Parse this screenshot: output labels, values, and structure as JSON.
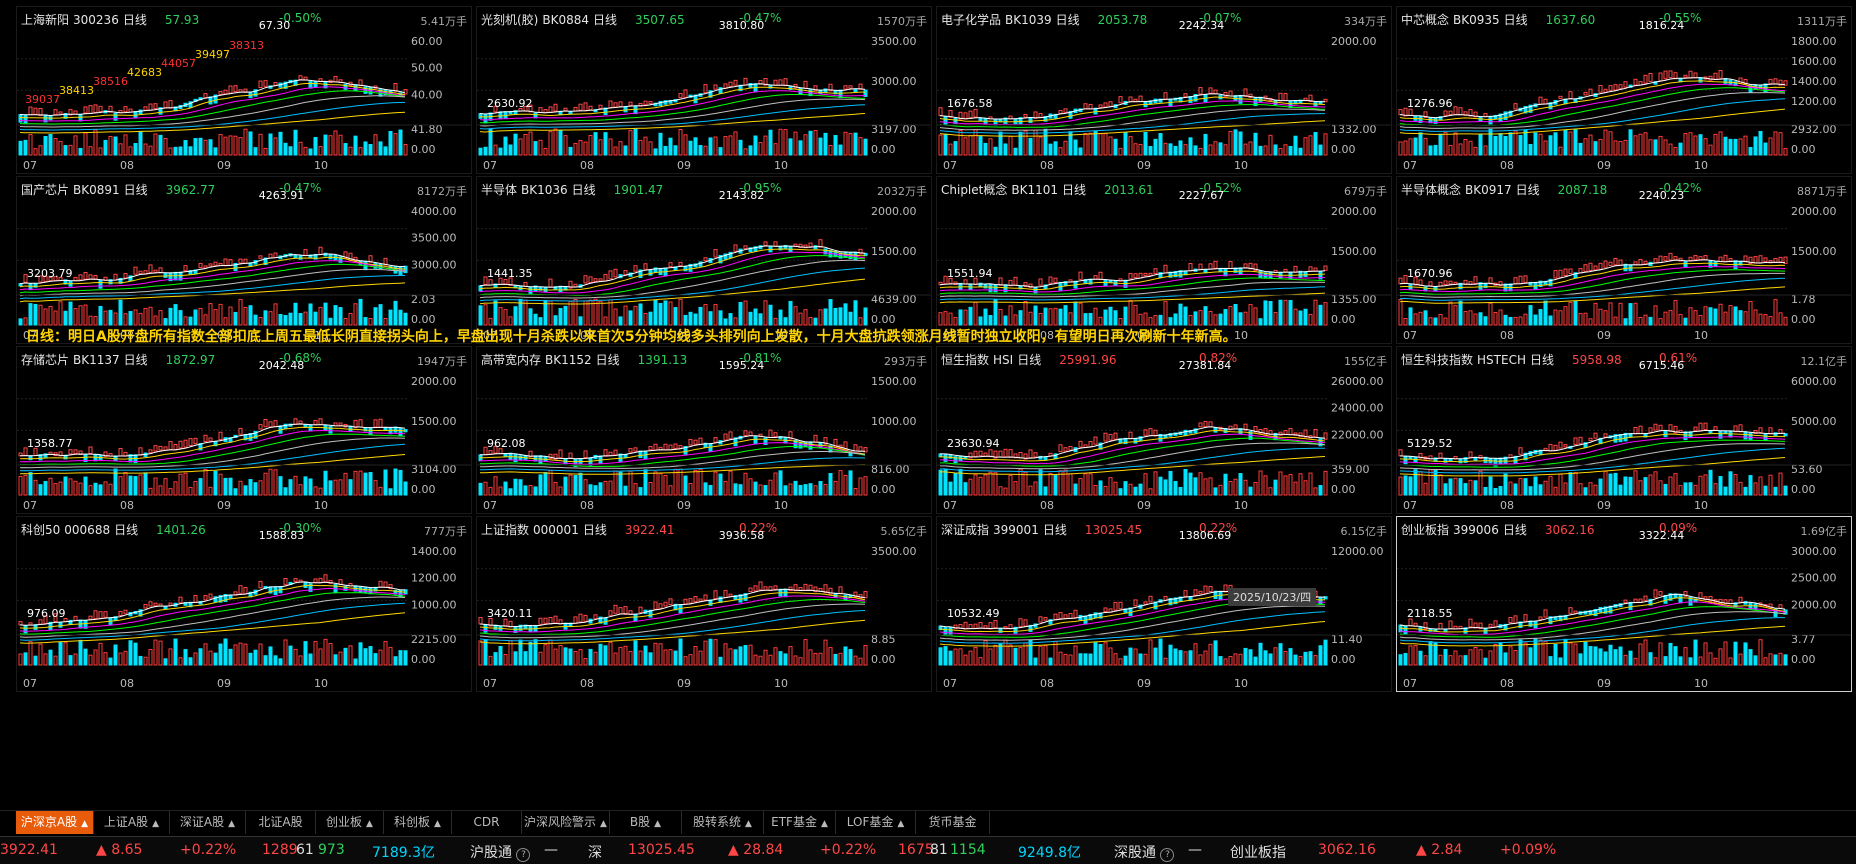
{
  "colors": {
    "up": "#ff4646",
    "down": "#2fcf5b",
    "ma1": "#ffffff",
    "ma2": "#ffd400",
    "ma3": "#ff00ff",
    "ma4": "#00ff00",
    "ma5": "#c0c0c0",
    "ma6": "#00bfff",
    "ma7": "#ffd700",
    "volUp": "#ff3a3a",
    "volDn": "#00e5ff"
  },
  "banner": "日线：明日A股开盘所有指数全部扣底上周五最低长阴直接拐头向上，早盘出现十月杀跌以来首次5分钟均线多头排列向上发散，十月大盘抗跌领涨月线暂时独立收阳，有望明日再次刷新十年新高。",
  "date_label": "2025/10/23/四",
  "months": [
    "07",
    "08",
    "09",
    "10"
  ],
  "panels": [
    {
      "name": "上海新阳",
      "code": "300236",
      "period": "日线",
      "price": "57.93",
      "chg": "-0.50%",
      "dir": "dn",
      "vol": "5.41万手",
      "hi": "67.30",
      "lo": "",
      "ticks": [
        "60.00",
        "50.00",
        "40.00"
      ],
      "vtick": "41.80",
      "vzero": "0.00",
      "extra": [
        "39037",
        "38413",
        "38516",
        "42683",
        "44057",
        "39497",
        "38313"
      ]
    },
    {
      "name": "光刻机(胶)",
      "code": "BK0884",
      "period": "日线",
      "price": "3507.65",
      "chg": "-0.47%",
      "dir": "dn",
      "vol": "1570万手",
      "hi": "3810.80",
      "lo": "2630.92",
      "ticks": [
        "3500.00",
        "3000.00"
      ],
      "vtick": "3197.00",
      "vzero": "0.00"
    },
    {
      "name": "电子化学品",
      "code": "BK1039",
      "period": "日线",
      "price": "2053.78",
      "chg": "-0.07%",
      "dir": "dn",
      "vol": "334万手",
      "hi": "2242.34",
      "lo": "1676.58",
      "ticks": [
        "2000.00"
      ],
      "vtick": "1332.00",
      "vzero": "0.00"
    },
    {
      "name": "中芯概念",
      "code": "BK0935",
      "period": "日线",
      "price": "1637.60",
      "chg": "-0.55%",
      "dir": "dn",
      "vol": "1311万手",
      "hi": "1816.24",
      "lo": "1276.96",
      "ticks": [
        "1800.00",
        "1600.00",
        "1400.00",
        "1200.00"
      ],
      "vtick": "2932.00",
      "vzero": "0.00"
    },
    {
      "name": "国产芯片",
      "code": "BK0891",
      "period": "日线",
      "price": "3962.77",
      "chg": "-0.47%",
      "dir": "dn",
      "vol": "8172万手",
      "hi": "4263.91",
      "lo": "3203.79",
      "ticks": [
        "4000.00",
        "3500.00",
        "3000.00"
      ],
      "vtick": "2.03",
      "vzero": "0.00"
    },
    {
      "name": "半导体",
      "code": "BK1036",
      "period": "日线",
      "price": "1901.47",
      "chg": "-0.95%",
      "dir": "dn",
      "vol": "2032万手",
      "hi": "2143.82",
      "lo": "1441.35",
      "ticks": [
        "2000.00",
        "1500.00"
      ],
      "vtick": "4639.00",
      "vzero": "0.00"
    },
    {
      "name": "Chiplet概念",
      "code": "BK1101",
      "period": "日线",
      "price": "2013.61",
      "chg": "-0.52%",
      "dir": "dn",
      "vol": "679万手",
      "hi": "2227.67",
      "lo": "1551.94",
      "ticks": [
        "2000.00",
        "1500.00"
      ],
      "vtick": "1355.00",
      "vzero": "0.00"
    },
    {
      "name": "半导体概念",
      "code": "BK0917",
      "period": "日线",
      "price": "2087.18",
      "chg": "-0.42%",
      "dir": "dn",
      "vol": "8871万手",
      "hi": "2240.23",
      "lo": "1670.96",
      "ticks": [
        "2000.00",
        "1500.00"
      ],
      "vtick": "1.78",
      "vzero": "0.00"
    },
    {
      "name": "存储芯片",
      "code": "BK1137",
      "period": "日线",
      "price": "1872.97",
      "chg": "-0.68%",
      "dir": "dn",
      "vol": "1947万手",
      "hi": "2042.48",
      "lo": "1358.77",
      "ticks": [
        "2000.00",
        "1500.00"
      ],
      "vtick": "3104.00",
      "vzero": "0.00"
    },
    {
      "name": "高带宽内存",
      "code": "BK1152",
      "period": "日线",
      "price": "1391.13",
      "chg": "-0.81%",
      "dir": "dn",
      "vol": "293万手",
      "hi": "1595.24",
      "lo": "962.08",
      "ticks": [
        "1500.00",
        "1000.00"
      ],
      "vtick": "816.00",
      "vzero": "0.00"
    },
    {
      "name": "恒生指数",
      "code": "HSI",
      "period": "日线",
      "price": "25991.96",
      "chg": "0.82%",
      "dir": "up",
      "vol": "155亿手",
      "hi": "27381.84",
      "lo": "23630.94",
      "ticks": [
        "26000.00",
        "24000.00",
        "22000.00"
      ],
      "vtick": "359.00",
      "vzero": "0.00"
    },
    {
      "name": "恒生科技指数",
      "code": "HSTECH",
      "period": "日线",
      "price": "5958.98",
      "chg": "0.61%",
      "dir": "up",
      "vol": "12.1亿手",
      "hi": "6715.46",
      "lo": "5129.52",
      "ticks": [
        "6000.00",
        "5000.00"
      ],
      "vtick": "53.60",
      "vzero": "0.00"
    },
    {
      "name": "科创50",
      "code": "000688",
      "period": "日线",
      "price": "1401.26",
      "chg": "-0.30%",
      "dir": "dn",
      "vol": "777万手",
      "hi": "1588.83",
      "lo": "976.09",
      "ticks": [
        "1400.00",
        "1200.00",
        "1000.00"
      ],
      "vtick": "2215.00",
      "vzero": "0.00"
    },
    {
      "name": "上证指数",
      "code": "000001",
      "period": "日线",
      "price": "3922.41",
      "chg": "0.22%",
      "dir": "up",
      "vol": "5.65亿手",
      "hi": "3936.58",
      "lo": "3420.11",
      "ticks": [
        "3500.00"
      ],
      "vtick": "8.85",
      "vzero": "0.00"
    },
    {
      "name": "深证成指",
      "code": "399001",
      "period": "日线",
      "price": "13025.45",
      "chg": "0.22%",
      "dir": "up",
      "vol": "6.15亿手",
      "hi": "13806.69",
      "lo": "10532.49",
      "ticks": [
        "12000.00"
      ],
      "vtick": "11.40",
      "vzero": "0.00"
    },
    {
      "name": "创业板指",
      "code": "399006",
      "period": "日线",
      "price": "3062.16",
      "chg": "0.09%",
      "dir": "up",
      "vol": "1.69亿手",
      "hi": "3322.44",
      "lo": "2118.55",
      "ticks": [
        "3000.00",
        "2500.00",
        "2000.00"
      ],
      "vtick": "3.77",
      "vzero": "0.00"
    }
  ],
  "tabs": [
    {
      "label": "沪深京A股",
      "arrow": "▲",
      "active": true
    },
    {
      "label": "上证A股",
      "arrow": "▲"
    },
    {
      "label": "深证A股",
      "arrow": "▲"
    },
    {
      "label": "北证A股",
      "arrow": ""
    },
    {
      "label": "创业板",
      "arrow": "▲"
    },
    {
      "label": "科创板",
      "arrow": "▲"
    },
    {
      "label": "CDR",
      "arrow": ""
    },
    {
      "label": "沪深风险警示",
      "arrow": "▲"
    },
    {
      "label": "B股",
      "arrow": "▲"
    },
    {
      "label": "股转系统",
      "arrow": "▲"
    },
    {
      "label": "ETF基金",
      "arrow": "▲"
    },
    {
      "label": "LOF基金",
      "arrow": "▲"
    },
    {
      "label": "货币基金",
      "arrow": ""
    }
  ],
  "status": {
    "sh_price": "3922.41",
    "sh_change": "▲ 8.65",
    "sh_pct": "+0.22%",
    "sh_up": "1289",
    "sh_flat": "61",
    "sh_dn": "973",
    "sh_amount": "7189.3亿",
    "sh_connect": "沪股通",
    "sh_connect_val": "—",
    "sz_label": "深",
    "sz_price": "13025.45",
    "sz_change": "▲ 28.84",
    "sz_pct": "+0.22%",
    "sz_up": "1675",
    "sz_flat": "81",
    "sz_dn": "1154",
    "sz_amount": "9249.8亿",
    "sz_connect": "深股通",
    "sz_connect_val": "—",
    "cy_label": "创业板指",
    "cy_price": "3062.16",
    "cy_change": "▲ 2.84",
    "cy_pct": "+0.09%"
  }
}
